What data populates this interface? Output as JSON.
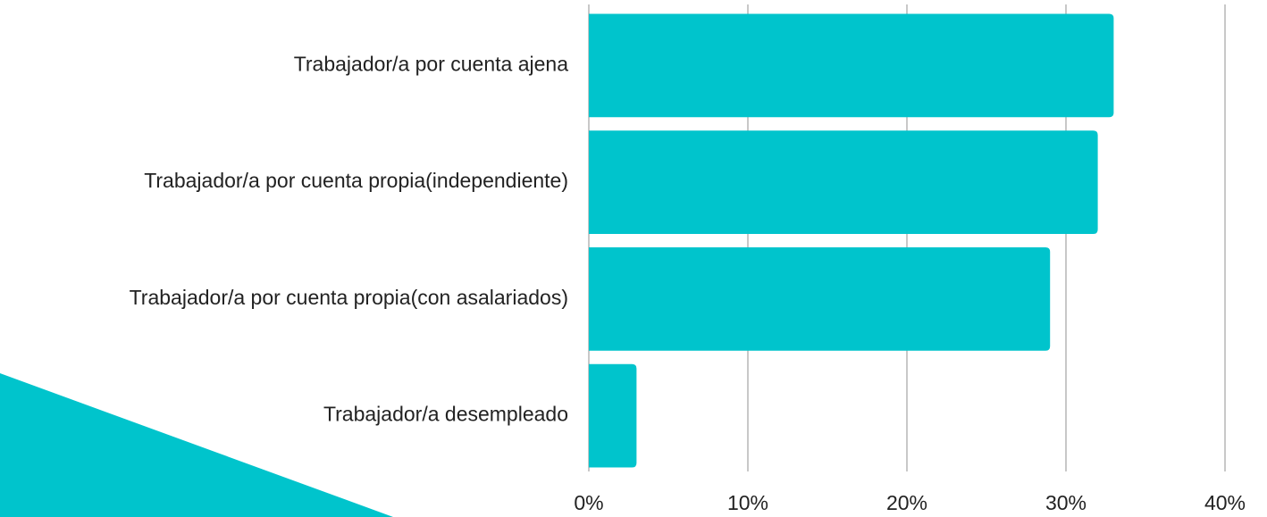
{
  "chart_data": {
    "type": "bar",
    "orientation": "horizontal",
    "categories": [
      "Trabajador/a por cuenta ajena",
      "Trabajador/a por cuenta propia(independiente)",
      "Trabajador/a por cuenta propia(con asalariados)",
      "Trabajador/a desempleado"
    ],
    "values": [
      33,
      32,
      29,
      3
    ],
    "color": "#00c4cc",
    "xlim": [
      0,
      40
    ],
    "xticks": [
      {
        "value": 0,
        "label": "0%"
      },
      {
        "value": 10,
        "label": "10%"
      },
      {
        "value": 20,
        "label": "20%"
      },
      {
        "value": 30,
        "label": "30%"
      },
      {
        "value": 40,
        "label": "40%"
      }
    ],
    "grid": true
  }
}
